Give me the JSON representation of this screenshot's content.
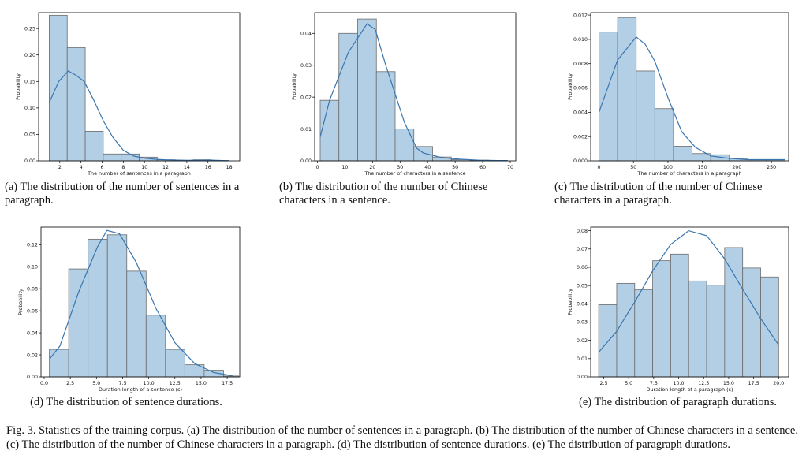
{
  "figure": {
    "caption": "Fig. 3.  Statistics of the training corpus. (a) The distribution of the number of sentences in a paragraph. (b) The distribution of the number of Chinese characters in a sentence. (c) The distribution of the number of Chinese characters in a paragraph. (d) The distribution of sentence durations. (e) The distribution of paragraph durations."
  },
  "colors": {
    "bar_fill": "#b3cfe5",
    "bar_edge": "#6b6b6b",
    "kde_line": "#3a76ae"
  },
  "chart_data": [
    {
      "id": "a",
      "type": "bar",
      "caption": "(a) The distribution of the number of sentences in a paragraph.",
      "xlabel": "The number of sentences in a paragraph",
      "ylabel": "Probability",
      "xlim": [
        0,
        19
      ],
      "ylim": [
        0,
        0.28
      ],
      "xticks": [
        2,
        4,
        6,
        8,
        10,
        12,
        14,
        16,
        18
      ],
      "xtick_labels": [
        "2",
        "4",
        "6",
        "8",
        "10",
        "12",
        "14",
        "16",
        "18"
      ],
      "yticks": [
        0.0,
        0.05,
        0.1,
        0.15,
        0.2,
        0.25
      ],
      "ytick_labels": [
        "0.00",
        "0.05",
        "0.10",
        "0.15",
        "0.20",
        "0.25"
      ],
      "bins": [
        {
          "x0": 1,
          "x1": 2.7,
          "y": 0.275
        },
        {
          "x0": 2.7,
          "x1": 4.4,
          "y": 0.214
        },
        {
          "x0": 4.4,
          "x1": 6.1,
          "y": 0.056
        },
        {
          "x0": 6.1,
          "x1": 7.8,
          "y": 0.013
        },
        {
          "x0": 7.8,
          "x1": 9.5,
          "y": 0.013
        },
        {
          "x0": 9.5,
          "x1": 11.2,
          "y": 0.007
        },
        {
          "x0": 11.2,
          "x1": 12.9,
          "y": 0.002
        },
        {
          "x0": 12.9,
          "x1": 14.6,
          "y": 0.001
        },
        {
          "x0": 14.6,
          "x1": 16.3,
          "y": 0.002
        },
        {
          "x0": 16.3,
          "x1": 18,
          "y": 0.0005
        }
      ],
      "kde": {
        "x": [
          1,
          1.9,
          2.8,
          3.5,
          4.3,
          5.2,
          6.1,
          7.0,
          8.0,
          9.0,
          10,
          11,
          12,
          14,
          16,
          18
        ],
        "y": [
          0.11,
          0.15,
          0.17,
          0.162,
          0.15,
          0.115,
          0.076,
          0.045,
          0.02,
          0.009,
          0.005,
          0.003,
          0.002,
          0.001,
          0.0015,
          0.0003
        ]
      }
    },
    {
      "id": "b",
      "type": "bar",
      "caption": "(b) The distribution of the number of Chinese characters in a sentence.",
      "xlabel": "The number of characters in a sentence",
      "ylabel": "Probability",
      "xlim": [
        -1,
        72
      ],
      "ylim": [
        0,
        0.0465
      ],
      "xticks": [
        0,
        10,
        20,
        30,
        40,
        50,
        60,
        70
      ],
      "xtick_labels": [
        "0",
        "10",
        "20",
        "30",
        "40",
        "50",
        "60",
        "70"
      ],
      "yticks": [
        0.0,
        0.01,
        0.02,
        0.03,
        0.04
      ],
      "ytick_labels": [
        "0.00",
        "0.01",
        "0.02",
        "0.03",
        "0.04"
      ],
      "bins": [
        {
          "x0": 1,
          "x1": 7.8,
          "y": 0.019
        },
        {
          "x0": 7.8,
          "x1": 14.6,
          "y": 0.04
        },
        {
          "x0": 14.6,
          "x1": 21.4,
          "y": 0.0445
        },
        {
          "x0": 21.4,
          "x1": 28.2,
          "y": 0.028
        },
        {
          "x0": 28.2,
          "x1": 35,
          "y": 0.01
        },
        {
          "x0": 35,
          "x1": 41.8,
          "y": 0.0045
        },
        {
          "x0": 41.8,
          "x1": 48.6,
          "y": 0.0012
        },
        {
          "x0": 48.6,
          "x1": 55.4,
          "y": 0.0004
        },
        {
          "x0": 55.4,
          "x1": 62.2,
          "y": 0.0002
        },
        {
          "x0": 62.2,
          "x1": 69,
          "y": 0.0001
        }
      ],
      "kde": {
        "x": [
          1,
          4.4,
          11.2,
          18,
          21,
          24.8,
          31.6,
          36,
          38.4,
          45.2,
          52,
          58.8,
          65.6,
          69
        ],
        "y": [
          0.0075,
          0.019,
          0.034,
          0.043,
          0.0412,
          0.03,
          0.012,
          0.004,
          0.0025,
          0.001,
          0.0005,
          0.0002,
          0.0001,
          0.0001
        ]
      }
    },
    {
      "id": "c",
      "type": "bar",
      "caption": "(c) The distribution of the number of Chinese characters in a paragraph.",
      "xlabel": "The number of characters in a paragraph",
      "ylabel": "Probability",
      "xlim": [
        -12,
        275
      ],
      "ylim": [
        0,
        0.0122
      ],
      "xticks": [
        0,
        50,
        100,
        150,
        200,
        250
      ],
      "xtick_labels": [
        "0",
        "50",
        "100",
        "150",
        "200",
        "250"
      ],
      "yticks": [
        0.0,
        0.002,
        0.004,
        0.006,
        0.008,
        0.01,
        0.012
      ],
      "ytick_labels": [
        "0.000",
        "0.002",
        "0.004",
        "0.006",
        "0.008",
        "0.010",
        "0.012"
      ],
      "bins": [
        {
          "x0": 0,
          "x1": 27,
          "y": 0.0106
        },
        {
          "x0": 27,
          "x1": 54,
          "y": 0.0118
        },
        {
          "x0": 54,
          "x1": 81,
          "y": 0.0074
        },
        {
          "x0": 81,
          "x1": 108,
          "y": 0.0043
        },
        {
          "x0": 108,
          "x1": 135,
          "y": 0.0012
        },
        {
          "x0": 135,
          "x1": 162,
          "y": 0.0006
        },
        {
          "x0": 162,
          "x1": 189,
          "y": 0.0005
        },
        {
          "x0": 189,
          "x1": 216,
          "y": 0.0002
        },
        {
          "x0": 216,
          "x1": 243,
          "y": 0.0001
        },
        {
          "x0": 243,
          "x1": 270,
          "y": 0.0001
        }
      ],
      "kde": {
        "x": [
          0,
          27,
          54,
          67,
          81,
          100,
          120,
          140,
          162,
          189,
          216,
          243,
          270
        ],
        "y": [
          0.004,
          0.0083,
          0.0102,
          0.0096,
          0.0082,
          0.0052,
          0.0024,
          0.0011,
          0.0004,
          0.0002,
          0.0001,
          0.0001,
          0.0001
        ]
      }
    },
    {
      "id": "d",
      "type": "bar",
      "caption": "(d) The distribution of sentence durations.",
      "xlabel": "Duration length of a sentence (s)",
      "ylabel": "Probability",
      "xlim": [
        -0.3,
        18.7
      ],
      "ylim": [
        0,
        0.136
      ],
      "xticks": [
        0,
        2.5,
        5,
        7.5,
        10,
        12.5,
        15,
        17.5
      ],
      "xtick_labels": [
        "0.0",
        "2.5",
        "5.0",
        "7.5",
        "10.0",
        "12.5",
        "15.0",
        "17.5"
      ],
      "yticks": [
        0.0,
        0.02,
        0.04,
        0.06,
        0.08,
        0.1,
        0.12
      ],
      "ytick_labels": [
        "0.00",
        "0.02",
        "0.04",
        "0.06",
        "0.08",
        "0.10",
        "0.12"
      ],
      "bins": [
        {
          "x0": 0.5,
          "x1": 2.35,
          "y": 0.025
        },
        {
          "x0": 2.35,
          "x1": 4.2,
          "y": 0.098
        },
        {
          "x0": 4.2,
          "x1": 6.05,
          "y": 0.125
        },
        {
          "x0": 6.05,
          "x1": 7.9,
          "y": 0.129
        },
        {
          "x0": 7.9,
          "x1": 9.75,
          "y": 0.096
        },
        {
          "x0": 9.75,
          "x1": 11.6,
          "y": 0.056
        },
        {
          "x0": 11.6,
          "x1": 13.45,
          "y": 0.025
        },
        {
          "x0": 13.45,
          "x1": 15.3,
          "y": 0.011
        },
        {
          "x0": 15.3,
          "x1": 17.15,
          "y": 0.006
        },
        {
          "x0": 17.15,
          "x1": 18.6,
          "y": 0.0008
        }
      ],
      "kde": {
        "x": [
          0.5,
          1.5,
          3.3,
          5.1,
          6.0,
          7.2,
          8.8,
          10.7,
          12.5,
          14.4,
          16.2,
          18
        ],
        "y": [
          0.016,
          0.028,
          0.077,
          0.118,
          0.133,
          0.13,
          0.104,
          0.062,
          0.031,
          0.012,
          0.004,
          0.001
        ]
      }
    },
    {
      "id": "e",
      "type": "bar",
      "caption": "(e) The distribution of paragraph durations.",
      "xlabel": "Duration length of a paragraph (s)",
      "ylabel": "Probability",
      "xlim": [
        1.2,
        21
      ],
      "ylim": [
        0,
        0.082
      ],
      "xticks": [
        2.5,
        5,
        7.5,
        10,
        12.5,
        15,
        17.5,
        20
      ],
      "xtick_labels": [
        "2.5",
        "5.0",
        "7.5",
        "10.0",
        "12.5",
        "15.0",
        "17.5",
        "20.0"
      ],
      "yticks": [
        0.0,
        0.01,
        0.02,
        0.03,
        0.04,
        0.05,
        0.06,
        0.07,
        0.08
      ],
      "ytick_labels": [
        "0.00",
        "0.01",
        "0.02",
        "0.03",
        "0.04",
        "0.05",
        "0.06",
        "0.07",
        "0.08"
      ],
      "bins": [
        {
          "x0": 2,
          "x1": 3.8,
          "y": 0.0395
        },
        {
          "x0": 3.8,
          "x1": 5.6,
          "y": 0.0512
        },
        {
          "x0": 5.6,
          "x1": 7.4,
          "y": 0.0478
        },
        {
          "x0": 7.4,
          "x1": 9.2,
          "y": 0.0636
        },
        {
          "x0": 9.2,
          "x1": 11,
          "y": 0.0672
        },
        {
          "x0": 11,
          "x1": 12.8,
          "y": 0.0525
        },
        {
          "x0": 12.8,
          "x1": 14.6,
          "y": 0.0502
        },
        {
          "x0": 14.6,
          "x1": 16.4,
          "y": 0.0708
        },
        {
          "x0": 16.4,
          "x1": 18.2,
          "y": 0.0596
        },
        {
          "x0": 18.2,
          "x1": 20,
          "y": 0.0547
        }
      ],
      "kde": {
        "x": [
          2,
          3.8,
          5.6,
          7.4,
          9.2,
          11,
          12.8,
          14.6,
          16.4,
          18.2,
          20
        ],
        "y": [
          0.0135,
          0.025,
          0.041,
          0.058,
          0.0725,
          0.08,
          0.0773,
          0.0645,
          0.048,
          0.032,
          0.0175
        ]
      }
    }
  ]
}
